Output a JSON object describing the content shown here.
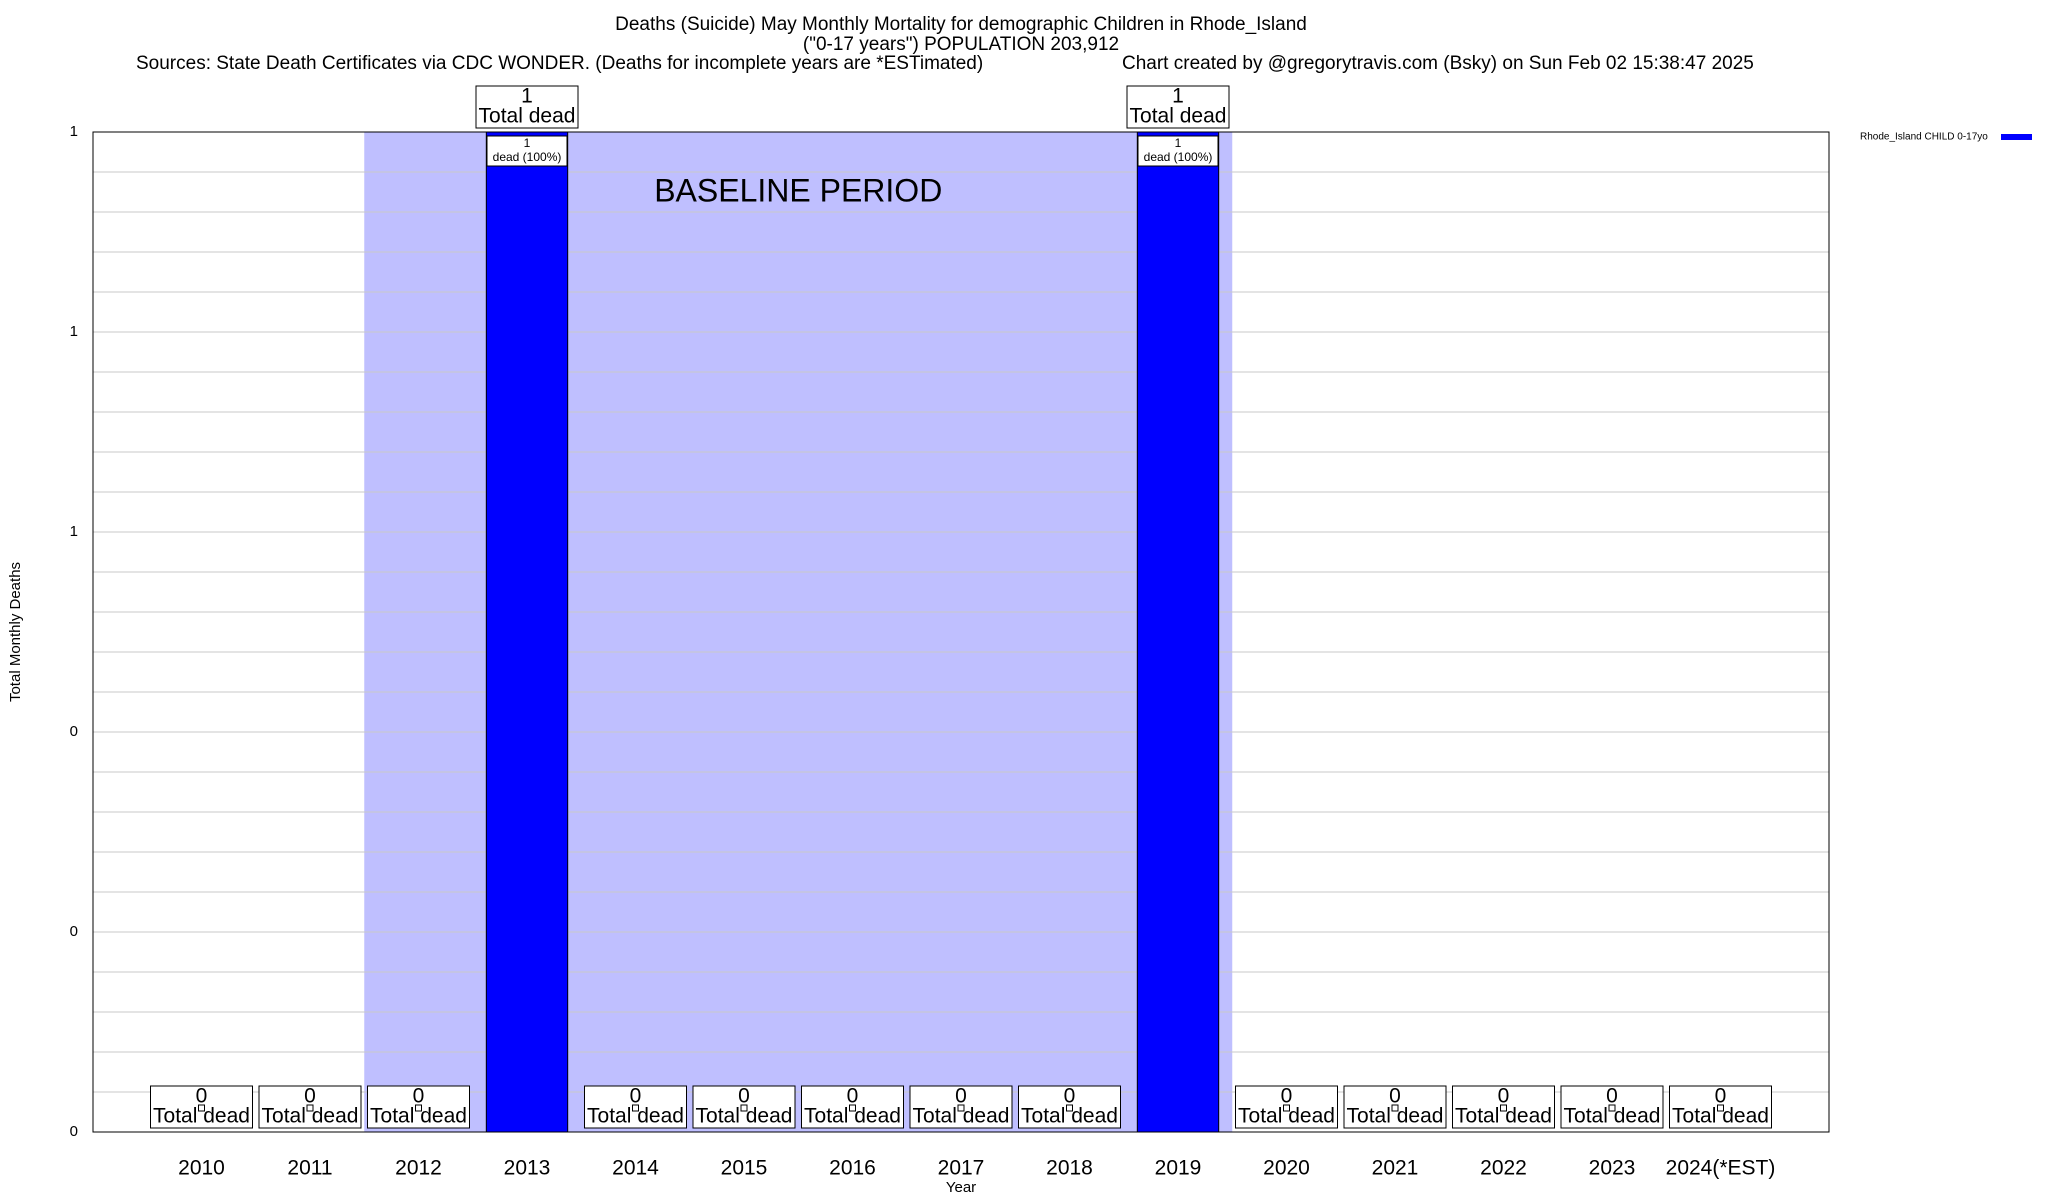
{
  "chart_data": {
    "type": "bar",
    "title": "Deaths (Suicide) May Monthly Mortality for demographic Children in Rhode_Island",
    "title_line2": "(\"0-17 years\") POPULATION 203,912",
    "subtitle": "Sources: State Death Certificates via CDC WONDER. (Deaths for incomplete years are *ESTimated)",
    "credit": "Chart created by @gregorytravis.com (Bsky) on Sun Feb 02 15:38:47 2025",
    "x_label": "Year",
    "y_label": "Total Monthly Deaths",
    "categories": [
      "2010",
      "2011",
      "2012",
      "2013",
      "2014",
      "2015",
      "2016",
      "2017",
      "2018",
      "2019",
      "2020",
      "2021",
      "2022",
      "2023",
      "2024(*EST)"
    ],
    "series": [
      {
        "name": "Rhode_Island CHILD 0-17yo",
        "color": "#0000ff",
        "values": [
          0,
          0,
          0,
          1,
          0,
          0,
          0,
          0,
          0,
          1,
          0,
          0,
          0,
          0,
          0
        ],
        "bar_labels": [
          null,
          null,
          null,
          "dead (100%)",
          null,
          null,
          null,
          null,
          null,
          "dead (100%)",
          null,
          null,
          null,
          null,
          null
        ]
      }
    ],
    "total_label": "Total dead",
    "baseline": {
      "label": "BASELINE PERIOD",
      "start": "2012",
      "end": "2019",
      "color": "#bfbfff"
    },
    "ylim": [
      0,
      1
    ],
    "yticks": [
      0,
      {
        "value": 0.2,
        "label": "0"
      },
      {
        "value": 0.4,
        "label": "0"
      },
      {
        "value": 0.6,
        "label": "1"
      },
      {
        "value": 0.8,
        "label": "1"
      },
      1
    ],
    "minor_yticks": [
      0.04,
      0.08,
      0.12,
      0.16,
      0.24,
      0.28,
      0.32,
      0.36,
      0.44,
      0.48,
      0.52,
      0.56,
      0.64,
      0.68,
      0.72,
      0.76,
      0.84,
      0.88,
      0.92,
      0.96
    ],
    "grid": true,
    "legend": "top-right"
  }
}
